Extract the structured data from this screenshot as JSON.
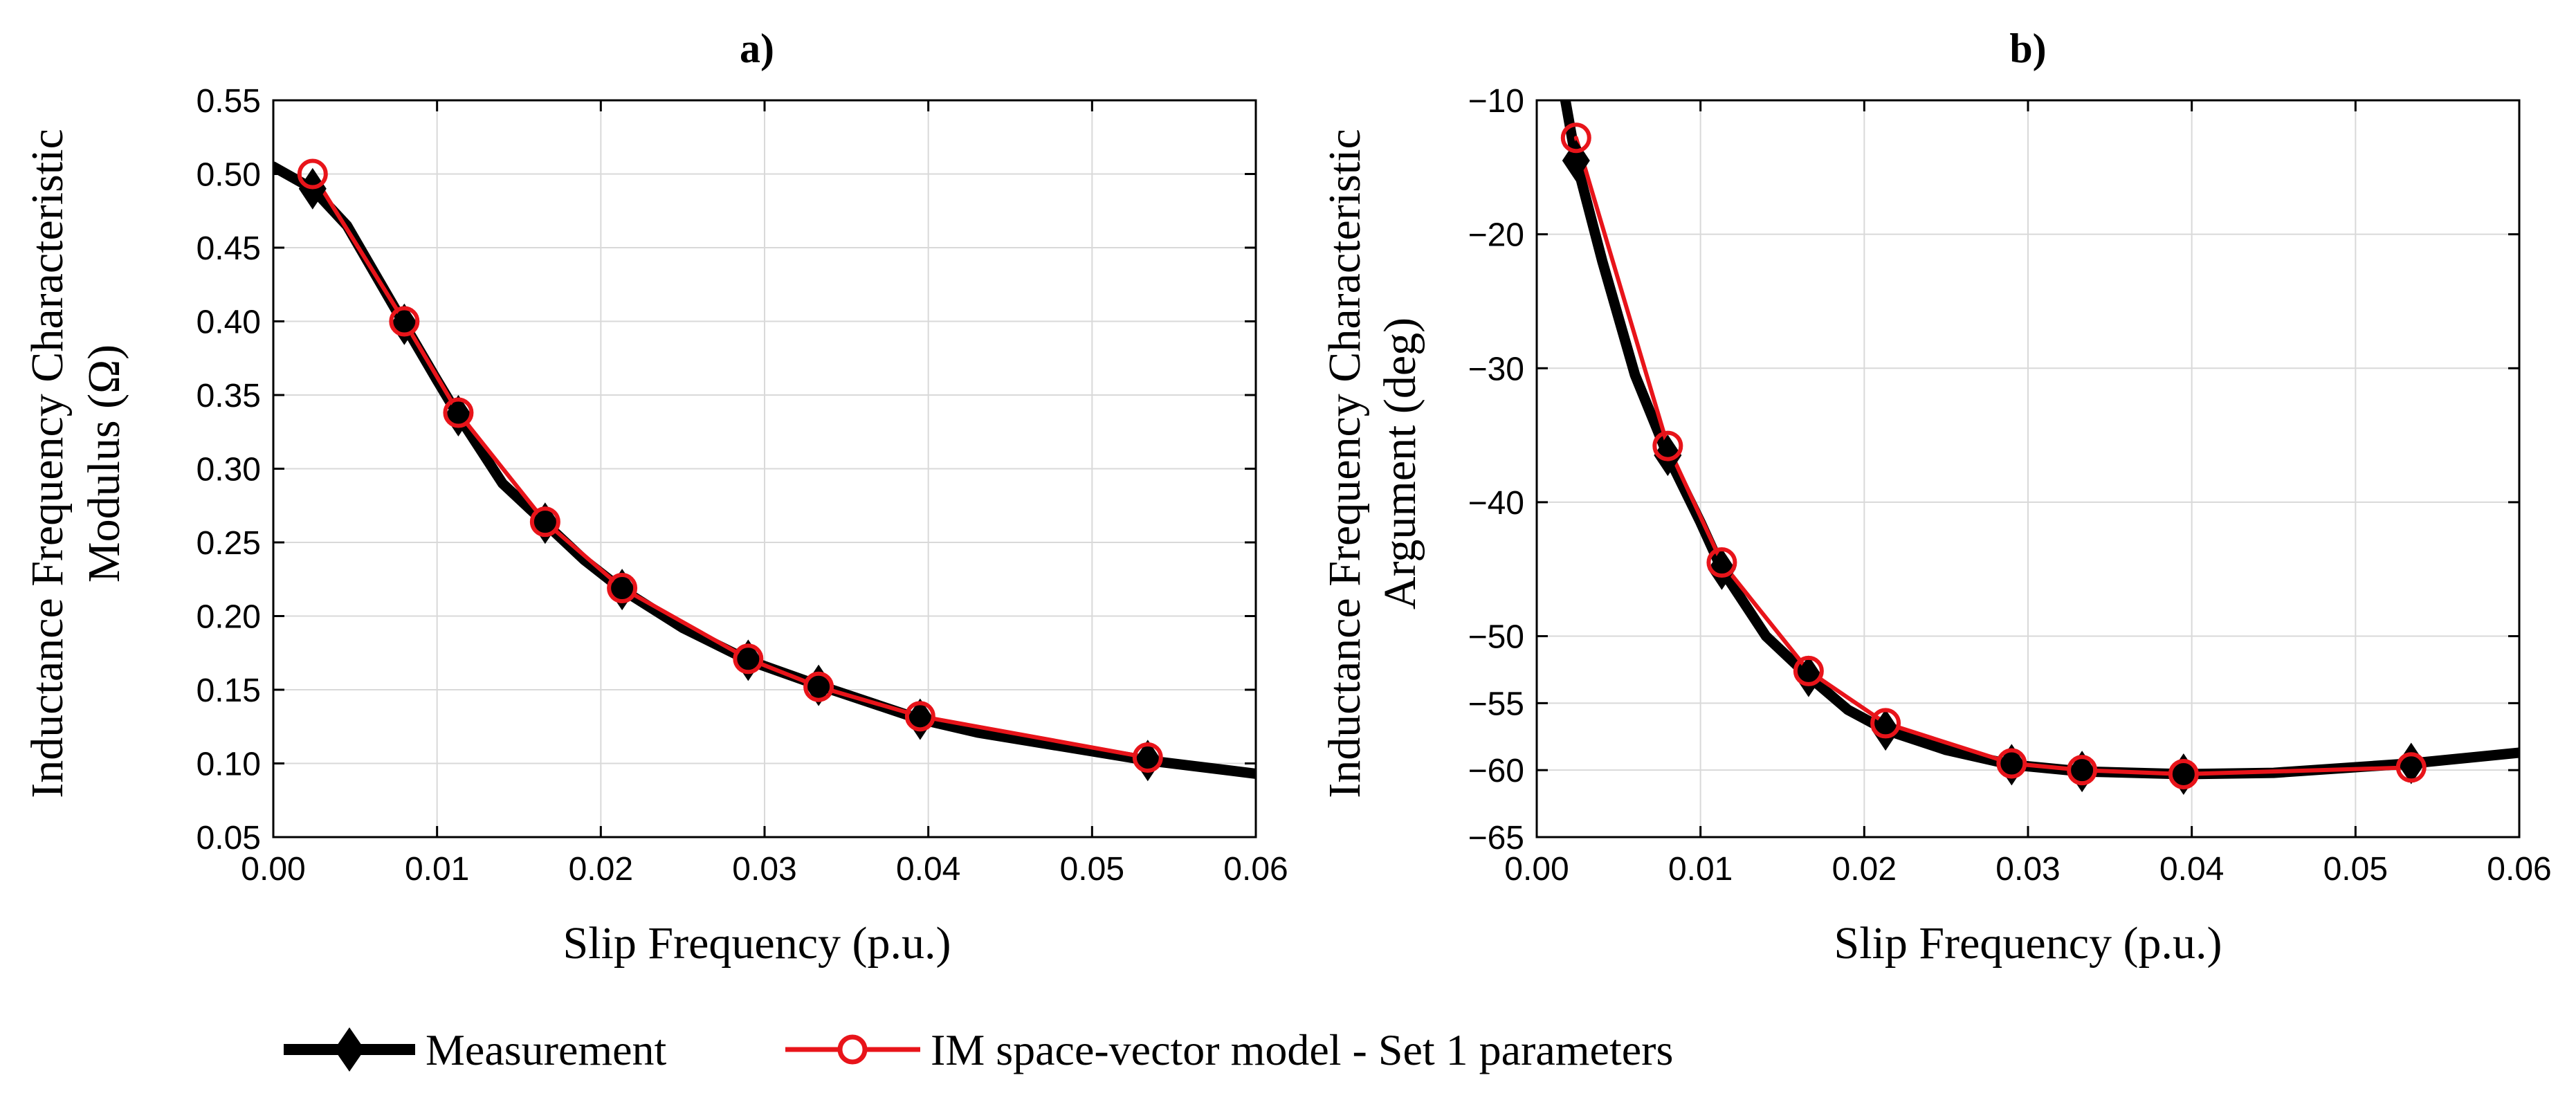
{
  "figure": {
    "legend": {
      "entries": [
        {
          "label": "Measurement",
          "color": "#000000",
          "marker": "diamond-filled"
        },
        {
          "label": "IM space-vector model - Set 1 parameters",
          "color": "#e8141a",
          "marker": "circle-open"
        }
      ]
    }
  },
  "chart_data": [
    {
      "type": "line",
      "title": "a)",
      "xlabel": "Slip Frequency (p.u.)",
      "ylabel": [
        "Inductance Frequency Characteristic",
        "Modulus (Ω)"
      ],
      "xlim": [
        0,
        0.06
      ],
      "ylim": [
        0.05,
        0.55
      ],
      "xticks": [
        0,
        0.01,
        0.02,
        0.03,
        0.04,
        0.05,
        0.06
      ],
      "xtick_labels": [
        "0.00",
        "0.01",
        "0.02",
        "0.03",
        "0.04",
        "0.05",
        "0.06"
      ],
      "yticks": [
        0.05,
        0.1,
        0.15,
        0.2,
        0.25,
        0.3,
        0.35,
        0.4,
        0.45,
        0.5,
        0.55
      ],
      "ytick_labels": [
        "0.05",
        "0.10",
        "0.15",
        "0.20",
        "0.25",
        "0.30",
        "0.35",
        "0.40",
        "0.45",
        "0.50",
        "0.55"
      ],
      "grid": true,
      "series": [
        {
          "name": "Measurement",
          "color": "#000000",
          "line": {
            "x": [
              0,
              0.0024,
              0.0045,
              0.008,
              0.01,
              0.0113,
              0.014,
              0.0166,
              0.019,
              0.0213,
              0.025,
              0.029,
              0.0333,
              0.0395,
              0.043,
              0.0534,
              0.06
            ],
            "y": [
              0.505,
              0.49,
              0.465,
              0.398,
              0.36,
              0.336,
              0.29,
              0.263,
              0.238,
              0.218,
              0.192,
              0.17,
              0.153,
              0.13,
              0.121,
              0.102,
              0.093
            ]
          },
          "markers": {
            "x": [
              0.0024,
              0.008,
              0.0113,
              0.0166,
              0.0213,
              0.029,
              0.0333,
              0.0395,
              0.0534
            ],
            "y": [
              0.49,
              0.398,
              0.336,
              0.263,
              0.218,
              0.17,
              0.153,
              0.13,
              0.102
            ]
          }
        },
        {
          "name": "IM space-vector model - Set 1 parameters",
          "color": "#e8141a",
          "line": {
            "x": [
              0.0024,
              0.008,
              0.0113,
              0.0166,
              0.0213,
              0.029,
              0.0333,
              0.0395,
              0.0534
            ],
            "y": [
              0.5,
              0.4,
              0.338,
              0.264,
              0.219,
              0.171,
              0.152,
              0.132,
              0.104
            ]
          },
          "markers": {
            "x": [
              0.0024,
              0.008,
              0.0113,
              0.0166,
              0.0213,
              0.029,
              0.0333,
              0.0395,
              0.0534
            ],
            "y": [
              0.5,
              0.4,
              0.338,
              0.264,
              0.219,
              0.171,
              0.152,
              0.132,
              0.104
            ]
          }
        }
      ]
    },
    {
      "type": "line",
      "title": "b)",
      "xlabel": "Slip Frequency (p.u.)",
      "ylabel": [
        "Inductance Frequency Characteristic",
        "Argument (deg)"
      ],
      "xlim": [
        0,
        0.06
      ],
      "ylim": [
        -65,
        -10
      ],
      "xticks": [
        0,
        0.01,
        0.02,
        0.03,
        0.04,
        0.05,
        0.06
      ],
      "xtick_labels": [
        "0.00",
        "0.01",
        "0.02",
        "0.03",
        "0.04",
        "0.05",
        "0.06"
      ],
      "yticks": [
        -10,
        -20,
        -30,
        -40,
        -50,
        -55,
        -60,
        -65
      ],
      "ytick_labels": [
        "−10",
        "−20",
        "−30",
        "−40",
        "−50",
        "−55",
        "−60",
        "−65"
      ],
      "grid": true,
      "series": [
        {
          "name": "Measurement",
          "color": "#000000",
          "line": {
            "x": [
              0.0016,
              0.0024,
              0.004,
              0.006,
              0.008,
              0.01,
              0.0113,
              0.014,
              0.0166,
              0.019,
              0.0213,
              0.025,
              0.029,
              0.0333,
              0.0395,
              0.045,
              0.0534,
              0.06
            ],
            "y": [
              -9,
              -14.5,
              -22,
              -30.5,
              -36.5,
              -41.5,
              -45,
              -50,
              -53,
              -55.5,
              -57,
              -58.5,
              -59.6,
              -60.1,
              -60.3,
              -60.2,
              -59.5,
              -58.7
            ]
          },
          "markers": {
            "x": [
              0.0024,
              0.008,
              0.0113,
              0.0166,
              0.0213,
              0.029,
              0.0333,
              0.0395,
              0.0534
            ],
            "y": [
              -14.5,
              -36.5,
              -45,
              -53,
              -57,
              -59.6,
              -60.1,
              -60.3,
              -59.5
            ]
          }
        },
        {
          "name": "IM space-vector model - Set 1 parameters",
          "color": "#e8141a",
          "line": {
            "x": [
              0.0024,
              0.008,
              0.0113,
              0.0166,
              0.0213,
              0.029,
              0.0333,
              0.0395,
              0.0534
            ],
            "y": [
              -12.8,
              -35.8,
              -44.5,
              -52.6,
              -56.5,
              -59.5,
              -60.0,
              -60.3,
              -59.8
            ]
          },
          "markers": {
            "x": [
              0.0024,
              0.008,
              0.0113,
              0.0166,
              0.0213,
              0.029,
              0.0333,
              0.0395,
              0.0534
            ],
            "y": [
              -12.8,
              -35.8,
              -44.5,
              -52.6,
              -56.5,
              -59.5,
              -60.0,
              -60.3,
              -59.8
            ]
          }
        }
      ]
    }
  ]
}
